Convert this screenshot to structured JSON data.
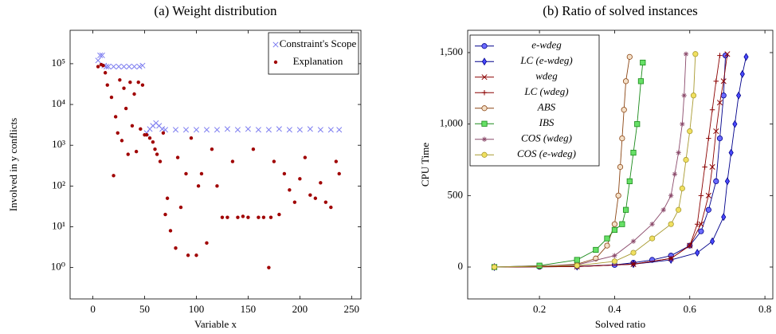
{
  "chart_data": [
    {
      "type": "scatter",
      "title": "(a) Weight distribution",
      "xlabel": "Variable x",
      "ylabel": "Involved in y conflicts",
      "xlim": [
        -22,
        259
      ],
      "xticks": [
        0,
        50,
        100,
        150,
        200,
        250
      ],
      "yscale": "log",
      "ylim": [
        0.17,
        660000
      ],
      "yticks": [
        {
          "value": 1,
          "label": "10⁰"
        },
        {
          "value": 10,
          "label": "10¹"
        },
        {
          "value": 100,
          "label": "10²"
        },
        {
          "value": 1000,
          "label": "10³"
        },
        {
          "value": 10000,
          "label": "10⁴"
        },
        {
          "value": 100000,
          "label": "10⁵"
        }
      ],
      "legend": "upper-right",
      "series": [
        {
          "name": "Constraint's Scope",
          "color": "#7b7bf0",
          "marker": "x",
          "x": [
            5,
            7,
            9,
            11,
            13,
            15,
            20,
            25,
            30,
            35,
            40,
            45,
            48,
            52,
            55,
            58,
            61,
            64,
            67,
            70,
            80,
            90,
            100,
            110,
            120,
            130,
            140,
            150,
            160,
            170,
            180,
            190,
            200,
            210,
            220,
            230,
            238
          ],
          "values": [
            120000,
            160000,
            160000,
            90000,
            85000,
            85000,
            85000,
            85000,
            85000,
            85000,
            85000,
            85000,
            90000,
            2000,
            2500,
            3000,
            3500,
            3000,
            2500,
            2400,
            2400,
            2400,
            2400,
            2400,
            2400,
            2500,
            2400,
            2500,
            2400,
            2400,
            2500,
            2400,
            2400,
            2500,
            2400,
            2400,
            2400
          ]
        },
        {
          "name": "Explanation",
          "color": "#a00000",
          "marker": "dot",
          "x": [
            5,
            8,
            10,
            12,
            14,
            18,
            20,
            22,
            24,
            26,
            28,
            30,
            32,
            34,
            36,
            38,
            40,
            42,
            44,
            46,
            48,
            50,
            52,
            55,
            58,
            60,
            62,
            65,
            68,
            70,
            72,
            75,
            80,
            82,
            85,
            90,
            92,
            95,
            100,
            102,
            105,
            110,
            115,
            120,
            125,
            130,
            135,
            140,
            145,
            150,
            155,
            160,
            165,
            170,
            172,
            175,
            180,
            185,
            190,
            195,
            200,
            205,
            210,
            215,
            220,
            225,
            230,
            235,
            238
          ],
          "values": [
            85000,
            95000,
            90000,
            60000,
            30000,
            15000,
            180,
            5000,
            2000,
            40000,
            1300,
            25000,
            8000,
            600,
            35000,
            3000,
            18000,
            700,
            35000,
            2500,
            30000,
            1800,
            1800,
            1500,
            1200,
            800,
            600,
            400,
            2000,
            20,
            50,
            8,
            3,
            500,
            30,
            200,
            2,
            1500,
            2,
            100,
            200,
            4,
            800,
            100,
            17,
            17,
            400,
            17,
            18,
            17,
            800,
            17,
            17,
            1,
            17,
            400,
            20,
            200,
            80,
            40,
            150,
            500,
            60,
            50,
            120,
            40,
            30,
            400,
            200
          ]
        }
      ]
    },
    {
      "type": "line",
      "title": "(b) Ratio of solved instances",
      "xlabel": "Solved ratio",
      "ylabel": "CPU Time",
      "xlim": [
        0.009,
        0.821
      ],
      "xticks": [
        0.2,
        0.4,
        0.6,
        0.8
      ],
      "ylim": [
        -223,
        1656
      ],
      "yticks": [
        0,
        500,
        {
          "value": 1000,
          "label": "1,000"
        },
        {
          "value": 1500,
          "label": "1,500"
        }
      ],
      "legend": "upper-left",
      "series": [
        {
          "name": "e-wdeg",
          "color": "#00008b",
          "fill": "#6b6bff",
          "marker": "circle",
          "x": [
            0.08,
            0.2,
            0.3,
            0.4,
            0.45,
            0.5,
            0.55,
            0.6,
            0.63,
            0.65,
            0.67,
            0.68,
            0.69,
            0.695
          ],
          "values": [
            0,
            2,
            5,
            15,
            30,
            50,
            80,
            150,
            250,
            400,
            600,
            900,
            1200,
            1480
          ]
        },
        {
          "name": "LC (e-wdeg)",
          "color": "#00008b",
          "fill": "#4a4aff",
          "marker": "diamond",
          "x": [
            0.08,
            0.3,
            0.45,
            0.55,
            0.62,
            0.66,
            0.69,
            0.7,
            0.71,
            0.72,
            0.73,
            0.74,
            0.75
          ],
          "values": [
            0,
            3,
            20,
            50,
            100,
            180,
            350,
            600,
            800,
            1000,
            1200,
            1350,
            1470
          ]
        },
        {
          "name": "wdeg",
          "color": "#8b0000",
          "fill": "#8b0000",
          "marker": "x",
          "x": [
            0.08,
            0.3,
            0.45,
            0.55,
            0.6,
            0.63,
            0.65,
            0.66,
            0.67,
            0.68,
            0.69,
            0.7
          ],
          "values": [
            0,
            3,
            20,
            60,
            150,
            300,
            500,
            700,
            950,
            1150,
            1300,
            1490
          ]
        },
        {
          "name": "LC (wdeg)",
          "color": "#8b0000",
          "fill": "#8b0000",
          "marker": "plus",
          "x": [
            0.08,
            0.3,
            0.45,
            0.55,
            0.6,
            0.62,
            0.63,
            0.64,
            0.65,
            0.66,
            0.67,
            0.68
          ],
          "values": [
            0,
            3,
            20,
            60,
            150,
            300,
            500,
            700,
            900,
            1100,
            1300,
            1480
          ]
        },
        {
          "name": "ABS",
          "color": "#8b4513",
          "fill": "#f4e0c8",
          "marker": "circle",
          "x": [
            0.08,
            0.2,
            0.3,
            0.35,
            0.38,
            0.4,
            0.41,
            0.415,
            0.42,
            0.425,
            0.43,
            0.44
          ],
          "values": [
            0,
            5,
            20,
            60,
            150,
            300,
            500,
            700,
            900,
            1100,
            1300,
            1470
          ]
        },
        {
          "name": "IBS",
          "color": "#1a8a1a",
          "fill": "#66e066",
          "marker": "square",
          "x": [
            0.08,
            0.2,
            0.3,
            0.35,
            0.38,
            0.4,
            0.42,
            0.43,
            0.44,
            0.45,
            0.46,
            0.47,
            0.475
          ],
          "values": [
            0,
            10,
            50,
            120,
            200,
            260,
            300,
            400,
            600,
            800,
            1000,
            1300,
            1430
          ]
        },
        {
          "name": "COS (wdeg)",
          "color": "#8b4a6b",
          "fill": "#8b4a6b",
          "marker": "star",
          "x": [
            0.08,
            0.3,
            0.4,
            0.45,
            0.5,
            0.53,
            0.55,
            0.56,
            0.57,
            0.58,
            0.585,
            0.59
          ],
          "values": [
            0,
            15,
            80,
            180,
            300,
            400,
            500,
            650,
            800,
            1000,
            1200,
            1490
          ]
        },
        {
          "name": "COS (e-wdeg)",
          "color": "#a89a30",
          "fill": "#f0e060",
          "marker": "circle",
          "x": [
            0.08,
            0.3,
            0.4,
            0.45,
            0.5,
            0.55,
            0.57,
            0.58,
            0.59,
            0.6,
            0.61,
            0.615
          ],
          "values": [
            0,
            10,
            40,
            100,
            200,
            300,
            400,
            550,
            750,
            950,
            1200,
            1490
          ]
        }
      ]
    }
  ]
}
